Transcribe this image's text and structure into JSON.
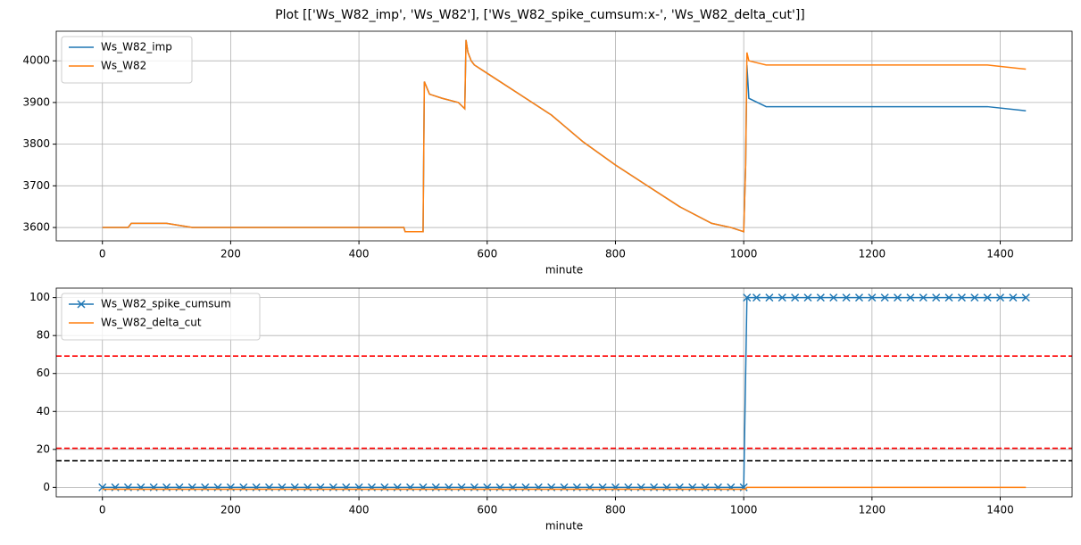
{
  "title": "Plot [['Ws_W82_imp', 'Ws_W82'], ['Ws_W82_spike_cumsum:x-', 'Ws_W82_delta_cut']]",
  "chart_data": [
    {
      "type": "line",
      "xlabel": "minute",
      "grid": true,
      "legend": "upper-left",
      "xlim": [
        -72,
        1512
      ],
      "xticks": [
        0,
        200,
        400,
        600,
        800,
        1000,
        1200,
        1400
      ],
      "ylim": [
        3568,
        4071
      ],
      "yticks": [
        3600,
        3700,
        3800,
        3900,
        4000
      ],
      "x": [
        0,
        40,
        45,
        60,
        100,
        140,
        470,
        472,
        500,
        502,
        510,
        530,
        555,
        565,
        567,
        570,
        575,
        580,
        600,
        650,
        700,
        750,
        800,
        850,
        900,
        950,
        980,
        1000,
        1003,
        1005,
        1008,
        1035,
        1300,
        1380,
        1440
      ],
      "series": [
        {
          "name": "Ws_W82_imp",
          "color": "#1f77b4",
          "values": [
            3600,
            3600,
            3610,
            3610,
            3610,
            3600,
            3600,
            3590,
            3590,
            3950,
            3920,
            3910,
            3900,
            3885,
            4050,
            4020,
            4000,
            3990,
            3970,
            3920,
            3870,
            3805,
            3750,
            3700,
            3650,
            3610,
            3600,
            3590,
            3750,
            3990,
            3910,
            3890,
            3890,
            3890,
            3880
          ]
        },
        {
          "name": "Ws_W82",
          "color": "#ff7f0e",
          "values": [
            3600,
            3600,
            3610,
            3610,
            3610,
            3600,
            3600,
            3590,
            3590,
            3950,
            3920,
            3910,
            3900,
            3885,
            4050,
            4020,
            4000,
            3990,
            3970,
            3920,
            3870,
            3805,
            3750,
            3700,
            3650,
            3610,
            3600,
            3590,
            3750,
            4020,
            4000,
            3990,
            3990,
            3990,
            3980
          ]
        }
      ]
    },
    {
      "type": "line",
      "xlabel": "minute",
      "grid": true,
      "legend": "upper-left",
      "xlim": [
        -72,
        1512
      ],
      "xticks": [
        0,
        200,
        400,
        600,
        800,
        1000,
        1200,
        1400
      ],
      "ylim": [
        -5,
        105
      ],
      "yticks": [
        0,
        20,
        40,
        60,
        80,
        100
      ],
      "hlines": [
        {
          "value": 69.2,
          "color": "#ff0000"
        },
        {
          "value": 20.6,
          "color": "#ff0000"
        },
        {
          "value": 14,
          "color": "#000000"
        }
      ],
      "series": [
        {
          "name": "Ws_W82_spike_cumsum",
          "color": "#1f77b4",
          "marker": "x",
          "x": [
            0,
            20,
            40,
            60,
            80,
            100,
            120,
            140,
            160,
            180,
            200,
            220,
            240,
            260,
            280,
            300,
            320,
            340,
            360,
            380,
            400,
            420,
            440,
            460,
            480,
            500,
            520,
            540,
            560,
            580,
            600,
            620,
            640,
            660,
            680,
            700,
            720,
            740,
            760,
            780,
            800,
            820,
            840,
            860,
            880,
            900,
            920,
            940,
            960,
            980,
            1000,
            1005,
            1020,
            1040,
            1060,
            1080,
            1100,
            1120,
            1140,
            1160,
            1180,
            1200,
            1220,
            1240,
            1260,
            1280,
            1300,
            1320,
            1340,
            1360,
            1380,
            1400,
            1420,
            1440
          ],
          "values": [
            0,
            0,
            0,
            0,
            0,
            0,
            0,
            0,
            0,
            0,
            0,
            0,
            0,
            0,
            0,
            0,
            0,
            0,
            0,
            0,
            0,
            0,
            0,
            0,
            0,
            0,
            0,
            0,
            0,
            0,
            0,
            0,
            0,
            0,
            0,
            0,
            0,
            0,
            0,
            0,
            0,
            0,
            0,
            0,
            0,
            0,
            0,
            0,
            0,
            0,
            0,
            100,
            100,
            100,
            100,
            100,
            100,
            100,
            100,
            100,
            100,
            100,
            100,
            100,
            100,
            100,
            100,
            100,
            100,
            100,
            100,
            100,
            100,
            100
          ]
        },
        {
          "name": "Ws_W82_delta_cut",
          "color": "#ff7f0e",
          "x": [
            0,
            1003,
            1005,
            1440
          ],
          "values": [
            -1,
            -1,
            0,
            0
          ]
        }
      ]
    }
  ]
}
